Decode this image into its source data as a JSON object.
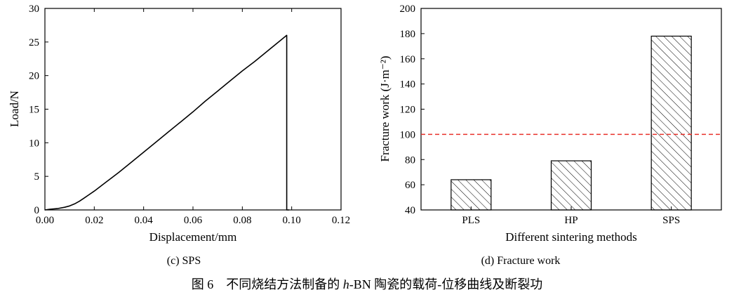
{
  "figure_title": "图 6　不同烧结方法制备的 h-BN 陶瓷的载荷-位移曲线及断裂功",
  "title_parts": {
    "prefix": "图 6　不同烧结方法制备的 ",
    "italic": "h",
    "suffix": "-BN 陶瓷的载荷-位移曲线及断裂功"
  },
  "chart_data": [
    {
      "type": "line",
      "caption": "(c) SPS",
      "xlabel": "Displacement/mm",
      "ylabel": "Load/N",
      "xlim": [
        0,
        0.12
      ],
      "ylim": [
        0,
        30
      ],
      "xticks": [
        "0.00",
        "0.02",
        "0.04",
        "0.06",
        "0.08",
        "0.10",
        "0.12"
      ],
      "yticks": [
        "0",
        "5",
        "10",
        "15",
        "20",
        "25",
        "30"
      ],
      "grid": false,
      "series": [
        {
          "color": "#000000",
          "x": [
            0,
            0.002,
            0.005,
            0.008,
            0.01,
            0.012,
            0.014,
            0.016,
            0.018,
            0.02,
            0.025,
            0.03,
            0.035,
            0.04,
            0.045,
            0.05,
            0.055,
            0.06,
            0.065,
            0.07,
            0.075,
            0.08,
            0.085,
            0.09,
            0.095,
            0.098,
            0.098,
            0.099
          ],
          "y": [
            0.0,
            0.1,
            0.2,
            0.4,
            0.6,
            0.9,
            1.3,
            1.8,
            2.3,
            2.8,
            4.2,
            5.6,
            7.1,
            8.6,
            10.1,
            11.6,
            13.1,
            14.6,
            16.2,
            17.7,
            19.2,
            20.7,
            22.1,
            23.6,
            25.1,
            26.0,
            0.0,
            0.0
          ]
        }
      ]
    },
    {
      "type": "bar",
      "caption": "(d) Fracture work",
      "xlabel": "Different sintering methods",
      "ylabel": "Fracture work (J·m⁻²)",
      "categories": [
        "PLS",
        "HP",
        "SPS"
      ],
      "values": [
        64,
        79,
        178
      ],
      "ylim": [
        40,
        200
      ],
      "yticks": [
        "40",
        "60",
        "80",
        "100",
        "120",
        "140",
        "160",
        "180",
        "200"
      ],
      "bar_fill": "diagonal-hatch",
      "reference_line": {
        "y": 100,
        "color": "#e8302a",
        "style": "dashed"
      },
      "grid": false
    }
  ]
}
